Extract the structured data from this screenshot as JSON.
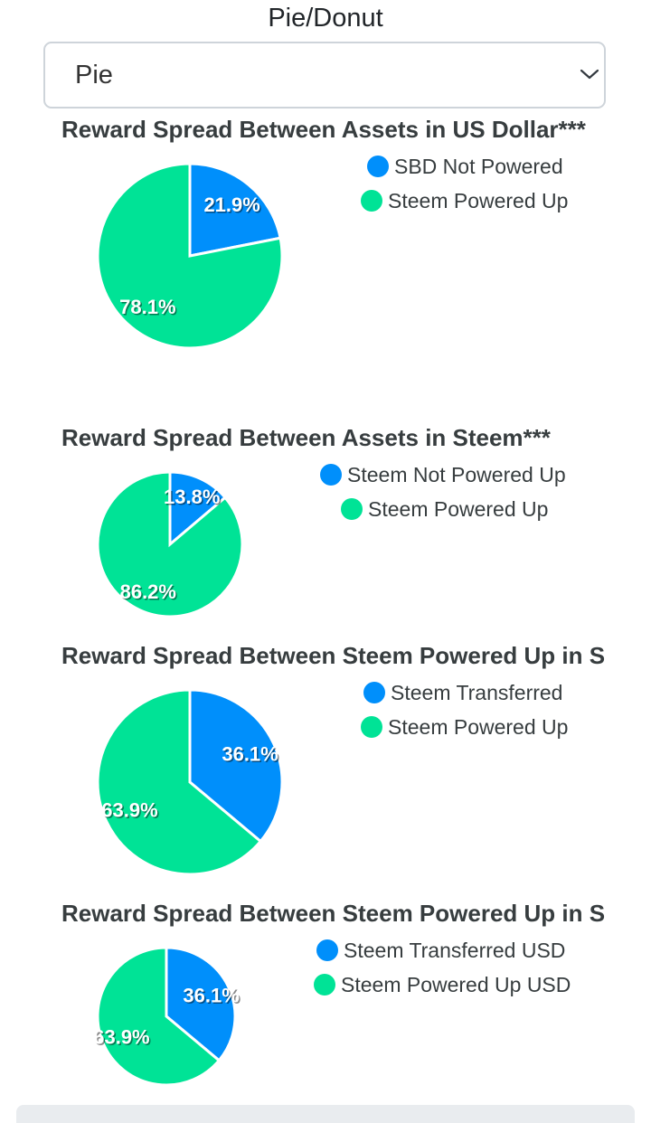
{
  "selector": {
    "label": "Pie/Donut",
    "value": "Pie"
  },
  "colors": {
    "blue": "#008ffb",
    "green": "#00e396"
  },
  "chart_data": [
    {
      "type": "pie",
      "title": "Reward Spread Between Assets in US Dollar***",
      "labels": [
        "SBD Not Powered",
        "Steem Powered Up"
      ],
      "values": [
        21.9,
        78.1
      ],
      "data_labels": [
        "21.9%",
        "78.1%"
      ],
      "legend": "right"
    },
    {
      "type": "pie",
      "title": "Reward Spread Between Assets in Steem***",
      "labels": [
        "Steem Not Powered Up",
        "Steem Powered Up"
      ],
      "values": [
        13.8,
        86.2
      ],
      "data_labels": [
        "13.8%",
        "86.2%"
      ],
      "legend": "right"
    },
    {
      "type": "pie",
      "title": "Reward Spread Between Steem Powered Up in S",
      "labels": [
        "Steem Transferred",
        "Steem Powered Up"
      ],
      "values": [
        36.1,
        63.9
      ],
      "data_labels": [
        "36.1%",
        "63.9%"
      ],
      "legend": "right"
    },
    {
      "type": "pie",
      "title": "Reward Spread Between Steem Powered Up in S",
      "labels": [
        "Steem Transferred USD",
        "Steem Powered Up USD"
      ],
      "values": [
        36.1,
        63.9
      ],
      "data_labels": [
        "36.1%",
        "63.9%"
      ],
      "legend": "right"
    }
  ]
}
